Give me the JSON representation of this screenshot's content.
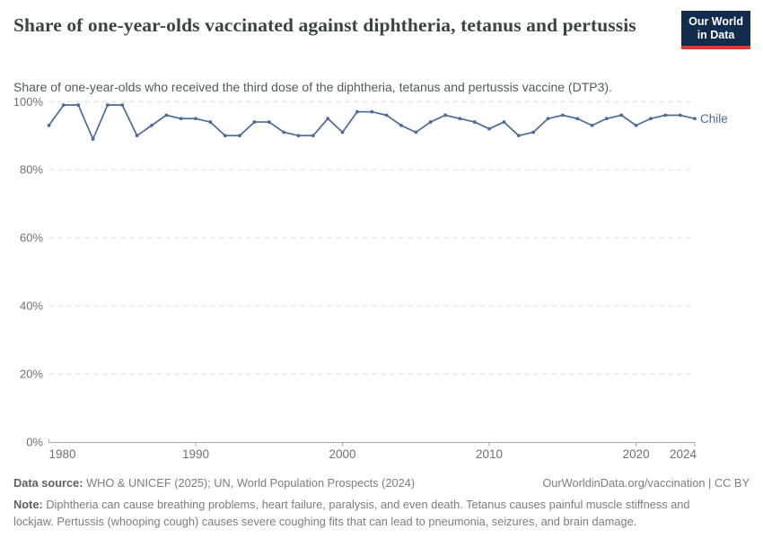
{
  "header": {
    "title": "Share of one-year-olds vaccinated against diphtheria, tetanus and pertussis",
    "subtitle": "Share of one-year-olds who received the third dose of the diphtheria, tetanus and pertussis vaccine (DTP3).",
    "logo": {
      "line1": "Our World",
      "line2": "in Data"
    }
  },
  "chart_data": {
    "type": "line",
    "title": "Share of one-year-olds vaccinated against diphtheria, tetanus and pertussis",
    "x": [
      1980,
      1981,
      1982,
      1983,
      1984,
      1985,
      1986,
      1987,
      1988,
      1989,
      1990,
      1991,
      1992,
      1993,
      1994,
      1995,
      1996,
      1997,
      1998,
      1999,
      2000,
      2001,
      2002,
      2003,
      2004,
      2005,
      2006,
      2007,
      2008,
      2009,
      2010,
      2011,
      2012,
      2013,
      2014,
      2015,
      2016,
      2017,
      2018,
      2019,
      2020,
      2021,
      2022,
      2023,
      2024
    ],
    "series": [
      {
        "name": "Chile",
        "color": "#4c6a9c",
        "values": [
          93,
          99,
          99,
          89,
          99,
          99,
          90,
          93,
          96,
          95,
          95,
          94,
          90,
          90,
          94,
          94,
          91,
          90,
          90,
          95,
          91,
          97,
          97,
          96,
          93,
          91,
          94,
          96,
          95,
          94,
          92,
          94,
          90,
          91,
          95,
          96,
          95,
          93,
          95,
          96,
          93,
          95,
          96,
          96,
          95
        ]
      }
    ],
    "xlabel": "",
    "ylabel": "",
    "ylim": [
      0,
      100
    ],
    "yticks": [
      0,
      20,
      40,
      60,
      80,
      100
    ],
    "ytick_labels": [
      "0%",
      "20%",
      "40%",
      "60%",
      "80%",
      "100%"
    ],
    "xticks": [
      1980,
      1990,
      2000,
      2010,
      2020,
      2024
    ],
    "xtick_labels": [
      "1980",
      "1990",
      "2000",
      "2010",
      "2020",
      "2024"
    ],
    "grid": "horizontal-dashed",
    "legend_position": "end-of-line-label"
  },
  "colors": {
    "line": "#4c6a9c",
    "grid": "#dcdcdc",
    "axis": "#a8a8a8",
    "tick_text": "#6f7276",
    "logo_bg": "#132b4d",
    "logo_red": "#dc3b2f"
  },
  "footer": {
    "data_source_label": "Data source:",
    "data_source_text": " WHO & UNICEF (2025); UN, World Population Prospects (2024)",
    "link_text": "OurWorldinData.org/vaccination | CC BY",
    "note_label": "Note:",
    "note_text": " Diphtheria can cause breathing problems, heart failure, paralysis, and even death. Tetanus causes painful muscle stiffness and lockjaw. Pertussis (whooping cough) causes severe coughing fits that can lead to pneumonia, seizures, and brain damage."
  }
}
